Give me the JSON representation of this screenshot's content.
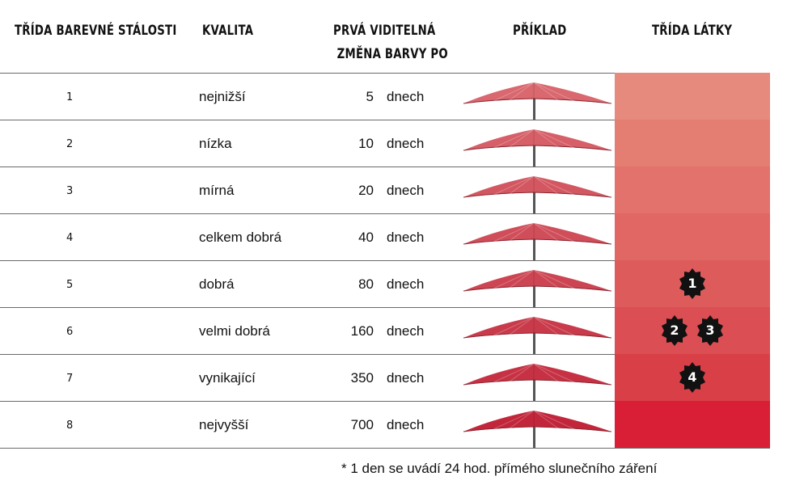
{
  "headers": {
    "fastness_class": "TŘÍDA BAREVNÉ STÁLOSTI",
    "quality": "KVALITA",
    "first_change_line1": "PRVÁ VIDITELNÁ",
    "first_change_line2": "ZMĚNA BARVY PO",
    "example": "PŘÍKLAD",
    "fabric_class": "TŘÍDA LÁTKY"
  },
  "rows": [
    {
      "class": "1",
      "quality": "nejnižší",
      "days": "5",
      "unit": "dnech",
      "color": "#e58a7c",
      "umbrella_color": "#d9686f",
      "badges": []
    },
    {
      "class": "2",
      "quality": "nízka",
      "days": "10",
      "unit": "dnech",
      "color": "#e47d72",
      "umbrella_color": "#d65f68",
      "badges": []
    },
    {
      "class": "3",
      "quality": "mírná",
      "days": "20",
      "unit": "dnech",
      "color": "#e2726b",
      "umbrella_color": "#d35761",
      "badges": []
    },
    {
      "class": "4",
      "quality": "celkem dobrá",
      "days": "40",
      "unit": "dnech",
      "color": "#e06764",
      "umbrella_color": "#d04e5a",
      "badges": []
    },
    {
      "class": "5",
      "quality": "dobrá",
      "days": "80",
      "unit": "dnech",
      "color": "#de5b5c",
      "umbrella_color": "#cd4553",
      "badges": [
        "1"
      ]
    },
    {
      "class": "6",
      "quality": "velmi dobrá",
      "days": "160",
      "unit": "dnech",
      "color": "#db4e53",
      "umbrella_color": "#c93b4b",
      "badges": [
        "2",
        "3"
      ]
    },
    {
      "class": "7",
      "quality": "vynikající",
      "days": "350",
      "unit": "dnech",
      "color": "#d93f47",
      "umbrella_color": "#c63244",
      "badges": [
        "4"
      ]
    },
    {
      "class": "8",
      "quality": "nejvyšší",
      "days": "700",
      "unit": "dnech",
      "color": "#d81f35",
      "umbrella_color": "#c2263b",
      "badges": []
    }
  ],
  "footnote": "* 1 den se uvádí 24 hod. přímého slunečního záření"
}
